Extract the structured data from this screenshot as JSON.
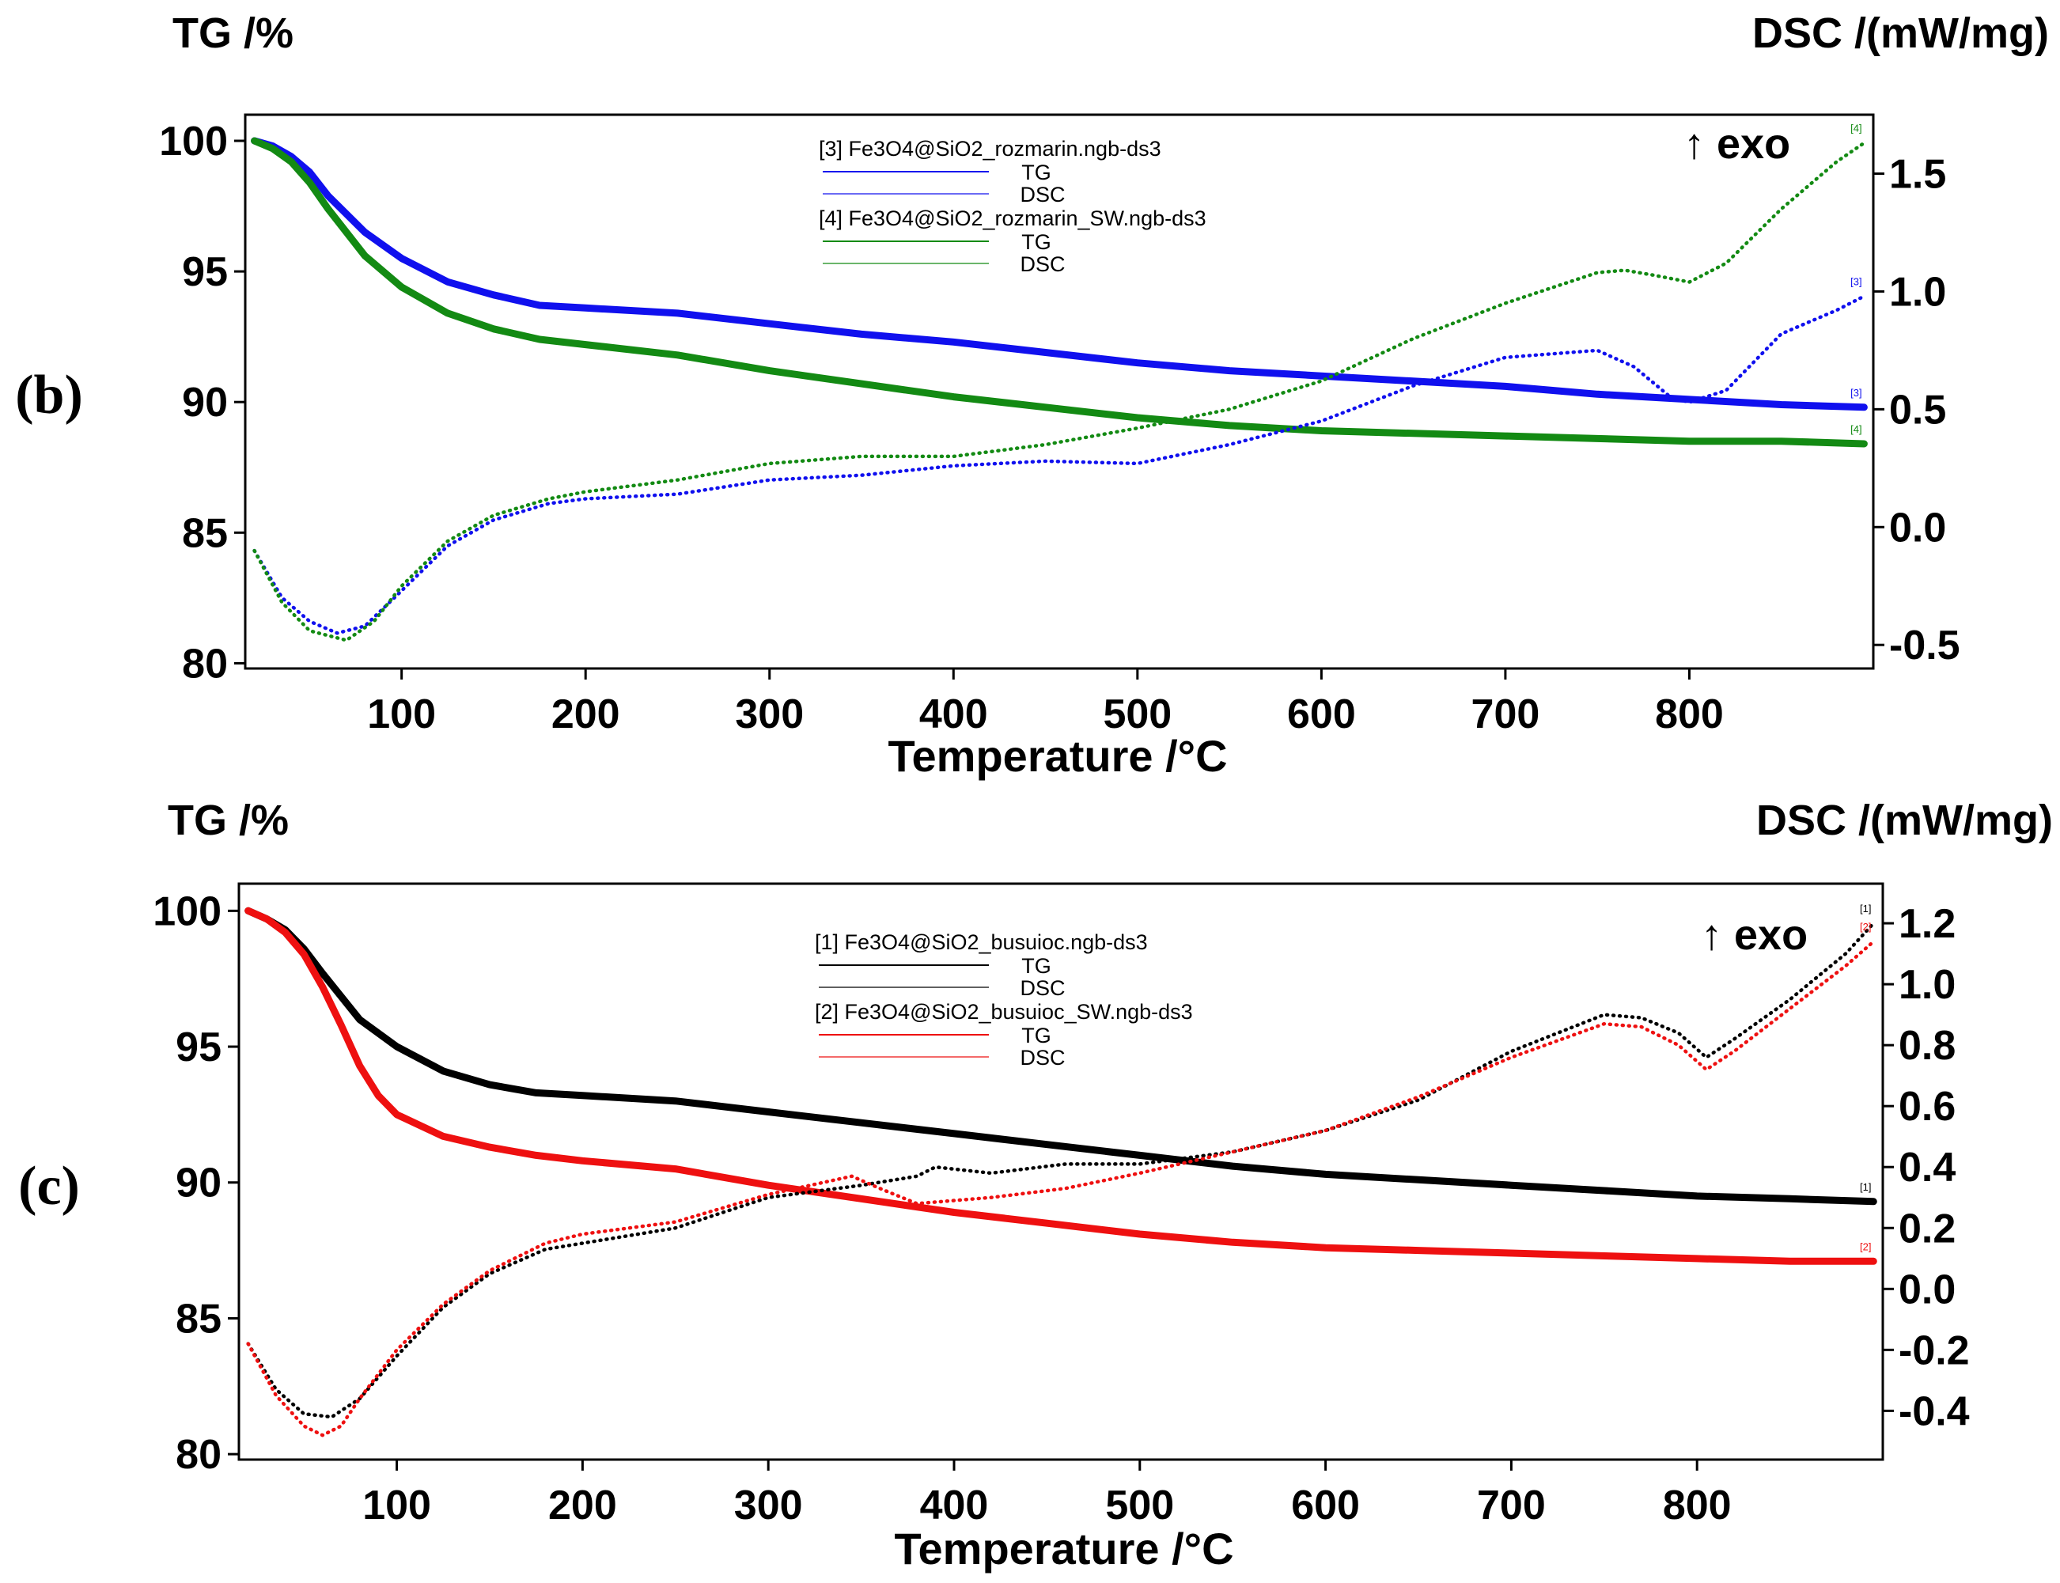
{
  "chart_data": [
    {
      "panel_label": "(b)",
      "type": "line",
      "left_axis_title": "TG /%",
      "right_axis_title": "DSC /(mW/mg)",
      "xlabel": "Temperature /°C",
      "exo_label": "↑ exo",
      "xlim": [
        15,
        900
      ],
      "ylim_left": [
        79.8,
        101.0
      ],
      "ylim_right": [
        -0.6,
        1.75
      ],
      "x_ticks": [
        100,
        200,
        300,
        400,
        500,
        600,
        700,
        800
      ],
      "y_ticks_left": [
        80,
        85,
        90,
        95,
        100
      ],
      "y_ticks_right": [
        -0.5,
        0.0,
        0.5,
        1.0,
        1.5
      ],
      "right_tick_format": 1,
      "legend": [
        {
          "name": "[3] Fe3O4@SiO2_rozmarin.ngb-ds3",
          "color": "#1010ee",
          "tg_label": "TG",
          "dsc_label": "DSC"
        },
        {
          "name": "[4] Fe3O4@SiO2_rozmarin_SW.ngb-ds3",
          "color": "#138a13",
          "tg_label": "TG",
          "dsc_label": "DSC"
        }
      ],
      "series": [
        {
          "name": "[3] TG",
          "kind": "TG",
          "axis": "left",
          "color": "#1010ee",
          "tag": "[3]",
          "x": [
            20,
            30,
            40,
            50,
            60,
            80,
            100,
            125,
            150,
            175,
            200,
            250,
            300,
            350,
            400,
            450,
            500,
            550,
            600,
            650,
            700,
            750,
            800,
            850,
            895
          ],
          "y": [
            100,
            99.8,
            99.4,
            98.8,
            97.9,
            96.5,
            95.5,
            94.6,
            94.1,
            93.7,
            93.6,
            93.4,
            93.0,
            92.6,
            92.3,
            91.9,
            91.5,
            91.2,
            91.0,
            90.8,
            90.6,
            90.3,
            90.1,
            89.9,
            89.8
          ]
        },
        {
          "name": "[4] TG",
          "kind": "TG",
          "axis": "left",
          "color": "#138a13",
          "tag": "[4]",
          "x": [
            20,
            30,
            40,
            50,
            60,
            80,
            100,
            125,
            150,
            175,
            200,
            250,
            300,
            350,
            400,
            450,
            500,
            550,
            600,
            650,
            700,
            750,
            800,
            850,
            895
          ],
          "y": [
            100,
            99.7,
            99.2,
            98.4,
            97.4,
            95.6,
            94.4,
            93.4,
            92.8,
            92.4,
            92.2,
            91.8,
            91.2,
            90.7,
            90.2,
            89.8,
            89.4,
            89.1,
            88.9,
            88.8,
            88.7,
            88.6,
            88.5,
            88.5,
            88.4
          ]
        },
        {
          "name": "[3] DSC",
          "kind": "DSC",
          "axis": "right",
          "color": "#1010ee",
          "tag": "[3]",
          "x": [
            20,
            35,
            50,
            65,
            80,
            100,
            125,
            150,
            180,
            200,
            250,
            300,
            350,
            400,
            450,
            500,
            550,
            600,
            650,
            700,
            750,
            770,
            790,
            800,
            820,
            850,
            880,
            895
          ],
          "y": [
            -0.1,
            -0.3,
            -0.4,
            -0.45,
            -0.42,
            -0.27,
            -0.08,
            0.03,
            0.1,
            0.12,
            0.14,
            0.2,
            0.22,
            0.26,
            0.28,
            0.27,
            0.35,
            0.45,
            0.6,
            0.72,
            0.75,
            0.68,
            0.55,
            0.53,
            0.58,
            0.82,
            0.92,
            0.98
          ]
        },
        {
          "name": "[4] DSC",
          "kind": "DSC",
          "axis": "right",
          "color": "#138a13",
          "tag": "[4]",
          "x": [
            20,
            35,
            50,
            70,
            85,
            100,
            125,
            150,
            180,
            200,
            250,
            300,
            350,
            400,
            450,
            500,
            550,
            600,
            650,
            700,
            750,
            765,
            780,
            800,
            820,
            850,
            880,
            895
          ],
          "y": [
            -0.1,
            -0.32,
            -0.44,
            -0.48,
            -0.4,
            -0.25,
            -0.06,
            0.05,
            0.12,
            0.15,
            0.2,
            0.27,
            0.3,
            0.3,
            0.35,
            0.42,
            0.5,
            0.62,
            0.8,
            0.95,
            1.08,
            1.09,
            1.07,
            1.04,
            1.12,
            1.35,
            1.55,
            1.63
          ]
        }
      ]
    },
    {
      "panel_label": "(c)",
      "type": "line",
      "left_axis_title": "TG /%",
      "right_axis_title": "DSC /(mW/mg)",
      "xlabel": "Temperature /°C",
      "exo_label": "↑ exo",
      "xlim": [
        15,
        900
      ],
      "ylim_left": [
        79.8,
        101.0
      ],
      "ylim_right": [
        -0.56,
        1.33
      ],
      "x_ticks": [
        100,
        200,
        300,
        400,
        500,
        600,
        700,
        800
      ],
      "y_ticks_left": [
        80,
        85,
        90,
        95,
        100
      ],
      "y_ticks_right": [
        -0.4,
        -0.2,
        0.0,
        0.2,
        0.4,
        0.6,
        0.8,
        1.0,
        1.2
      ],
      "right_tick_format": 1,
      "legend": [
        {
          "name": "[1] Fe3O4@SiO2_busuioc.ngb-ds3",
          "color": "#000000",
          "tg_label": "TG",
          "dsc_label": "DSC"
        },
        {
          "name": "[2] Fe3O4@SiO2_busuioc_SW.ngb-ds3",
          "color": "#ee1010",
          "tg_label": "TG",
          "dsc_label": "DSC"
        }
      ],
      "series": [
        {
          "name": "[1] TG",
          "kind": "TG",
          "axis": "left",
          "color": "#000000",
          "tag": "[1]",
          "x": [
            20,
            30,
            40,
            50,
            60,
            80,
            100,
            125,
            150,
            175,
            200,
            250,
            300,
            350,
            400,
            450,
            500,
            550,
            600,
            650,
            700,
            750,
            800,
            850,
            895
          ],
          "y": [
            100,
            99.7,
            99.3,
            98.6,
            97.7,
            96.0,
            95.0,
            94.1,
            93.6,
            93.3,
            93.2,
            93.0,
            92.6,
            92.2,
            91.8,
            91.4,
            91.0,
            90.6,
            90.3,
            90.1,
            89.9,
            89.7,
            89.5,
            89.4,
            89.3
          ]
        },
        {
          "name": "[2] TG",
          "kind": "TG",
          "axis": "left",
          "color": "#ee1010",
          "tag": "[2]",
          "x": [
            20,
            30,
            40,
            50,
            60,
            70,
            80,
            90,
            100,
            125,
            150,
            175,
            200,
            250,
            300,
            350,
            400,
            450,
            500,
            550,
            600,
            650,
            700,
            750,
            800,
            850,
            895
          ],
          "y": [
            100,
            99.7,
            99.2,
            98.4,
            97.2,
            95.8,
            94.3,
            93.2,
            92.5,
            91.7,
            91.3,
            91.0,
            90.8,
            90.5,
            89.9,
            89.4,
            88.9,
            88.5,
            88.1,
            87.8,
            87.6,
            87.5,
            87.4,
            87.3,
            87.2,
            87.1,
            87.1
          ]
        },
        {
          "name": "[1] DSC",
          "kind": "DSC",
          "axis": "right",
          "color": "#000000",
          "tag": "[1]",
          "x": [
            20,
            35,
            50,
            65,
            80,
            100,
            125,
            150,
            180,
            200,
            250,
            300,
            350,
            380,
            390,
            420,
            460,
            500,
            550,
            600,
            650,
            700,
            750,
            770,
            790,
            805,
            820,
            850,
            880,
            895
          ],
          "y": [
            -0.18,
            -0.33,
            -0.41,
            -0.42,
            -0.36,
            -0.22,
            -0.06,
            0.05,
            0.13,
            0.15,
            0.2,
            0.3,
            0.34,
            0.37,
            0.4,
            0.38,
            0.41,
            0.41,
            0.45,
            0.52,
            0.62,
            0.78,
            0.9,
            0.89,
            0.84,
            0.76,
            0.82,
            0.95,
            1.1,
            1.2
          ]
        },
        {
          "name": "[2] DSC",
          "kind": "DSC",
          "axis": "right",
          "color": "#ee1010",
          "tag": "[2]",
          "x": [
            20,
            35,
            50,
            60,
            70,
            80,
            100,
            125,
            150,
            180,
            200,
            250,
            300,
            330,
            345,
            360,
            380,
            420,
            460,
            500,
            550,
            600,
            650,
            700,
            750,
            770,
            790,
            805,
            820,
            850,
            880,
            895
          ],
          "y": [
            -0.18,
            -0.35,
            -0.45,
            -0.48,
            -0.45,
            -0.36,
            -0.2,
            -0.05,
            0.06,
            0.15,
            0.18,
            0.22,
            0.31,
            0.35,
            0.37,
            0.33,
            0.28,
            0.3,
            0.33,
            0.38,
            0.45,
            0.52,
            0.63,
            0.76,
            0.87,
            0.86,
            0.8,
            0.72,
            0.78,
            0.92,
            1.06,
            1.14
          ]
        }
      ]
    }
  ]
}
